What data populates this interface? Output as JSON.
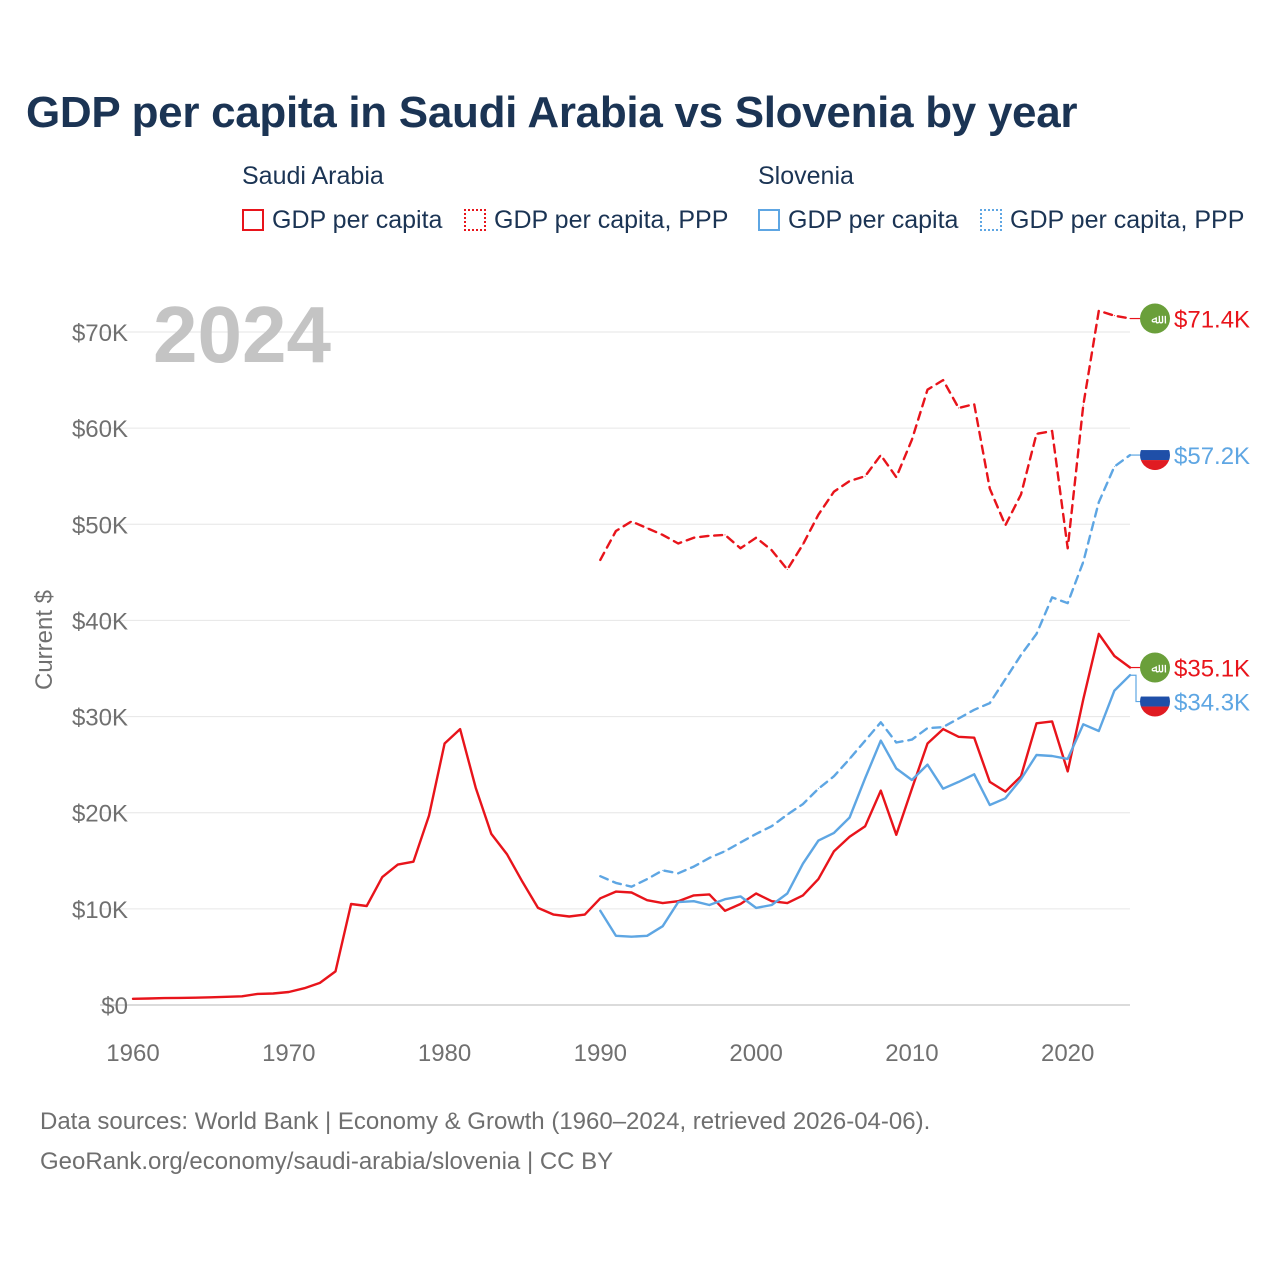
{
  "title": "GDP per capita in Saudi Arabia vs Slovenia by year",
  "legend": {
    "groups": [
      {
        "country": "Saudi Arabia",
        "color": "#e8141b",
        "items": [
          {
            "label": "GDP per capita",
            "style": "solid"
          },
          {
            "label": "GDP per capita, PPP",
            "style": "dotted"
          }
        ]
      },
      {
        "country": "Slovenia",
        "color": "#5ea6e3",
        "items": [
          {
            "label": "GDP per capita",
            "style": "solid"
          },
          {
            "label": "GDP per capita, PPP",
            "style": "dotted"
          }
        ]
      }
    ]
  },
  "year_watermark": "2024",
  "footer": {
    "sources": "Data sources: World Bank | Economy & Growth (1960–2024, retrieved 2026-04-06).",
    "credit": "GeoRank.org/economy/saudi-arabia/slovenia | CC BY"
  },
  "flags": {
    "saudi_arabia": {
      "color": "#6a9f3a",
      "glyph": "ﷲ"
    },
    "slovenia": {
      "stripes": [
        "#ffffff",
        "#1f4fa8",
        "#e01b22"
      ]
    }
  },
  "chart_data": {
    "type": "line",
    "title": "GDP per capita in Saudi Arabia vs Slovenia by year",
    "xlabel": "",
    "ylabel": "Current $",
    "xlim": [
      1960,
      2024
    ],
    "ylim": [
      0,
      70000
    ],
    "x_ticks": [
      1960,
      1970,
      1980,
      1990,
      2000,
      2010,
      2020
    ],
    "y_ticks": [
      0,
      10000,
      20000,
      30000,
      40000,
      50000,
      60000,
      70000
    ],
    "y_tick_labels": [
      "$0",
      "$10K",
      "$20K",
      "$30K",
      "$40K",
      "$50K",
      "$60K",
      "$70K"
    ],
    "grid": "horizontal",
    "series": [
      {
        "name": "Saudi Arabia GDP per capita",
        "country": "saudi_arabia",
        "color": "#e8141b",
        "dash": "solid",
        "end_label": "$35.1K",
        "start_year": 1960,
        "values": [
          650,
          680,
          720,
          740,
          760,
          800,
          850,
          900,
          1150,
          1200,
          1350,
          1750,
          2300,
          3500,
          10500,
          10300,
          13300,
          14600,
          14900,
          19700,
          27200,
          28700,
          22600,
          17800,
          15700,
          12800,
          10100,
          9400,
          9200,
          9400,
          11100,
          11800,
          11700,
          10900,
          10600,
          10800,
          11400,
          11500,
          9800,
          10500,
          11600,
          10800,
          10600,
          11400,
          13100,
          16000,
          17500,
          18600,
          22300,
          17700,
          22500,
          27200,
          28700,
          27900,
          27800,
          23200,
          22200,
          23800,
          29300,
          29500,
          24300,
          31800,
          38600,
          36300,
          35100
        ]
      },
      {
        "name": "Saudi Arabia GDP per capita, PPP",
        "country": "saudi_arabia",
        "color": "#e8141b",
        "dash": "dashed",
        "end_label": "$71.4K",
        "start_year": 1990,
        "values": [
          46300,
          49300,
          50300,
          49600,
          48900,
          48000,
          48600,
          48800,
          48900,
          47500,
          48600,
          47300,
          45300,
          47900,
          51000,
          53400,
          54500,
          55000,
          57200,
          54900,
          58800,
          64000,
          65000,
          62100,
          62500,
          53700,
          49900,
          53100,
          59400,
          59700,
          47500,
          62400,
          72200,
          71700,
          71400
        ]
      },
      {
        "name": "Slovenia GDP per capita",
        "country": "slovenia",
        "color": "#5ea6e3",
        "dash": "solid",
        "end_label": "$34.3K",
        "start_year": 1990,
        "values": [
          9800,
          7200,
          7100,
          7200,
          8200,
          10700,
          10800,
          10400,
          11000,
          11300,
          10100,
          10400,
          11600,
          14700,
          17100,
          17900,
          19500,
          23600,
          27500,
          24600,
          23400,
          25000,
          22500,
          23200,
          24000,
          20800,
          21500,
          23500,
          26000,
          25900,
          25600,
          29200,
          28500,
          32700,
          34300
        ]
      },
      {
        "name": "Slovenia GDP per capita, PPP",
        "country": "slovenia",
        "color": "#5ea6e3",
        "dash": "dashed",
        "end_label": "$57.2K",
        "start_year": 1990,
        "values": [
          13400,
          12700,
          12300,
          13100,
          14000,
          13700,
          14400,
          15300,
          16000,
          16900,
          17800,
          18600,
          19800,
          20900,
          22500,
          23800,
          25600,
          27500,
          29400,
          27300,
          27600,
          28800,
          28900,
          29800,
          30700,
          31400,
          33900,
          36400,
          38600,
          42400,
          41800,
          46100,
          52300,
          56000,
          57200
        ]
      }
    ]
  }
}
